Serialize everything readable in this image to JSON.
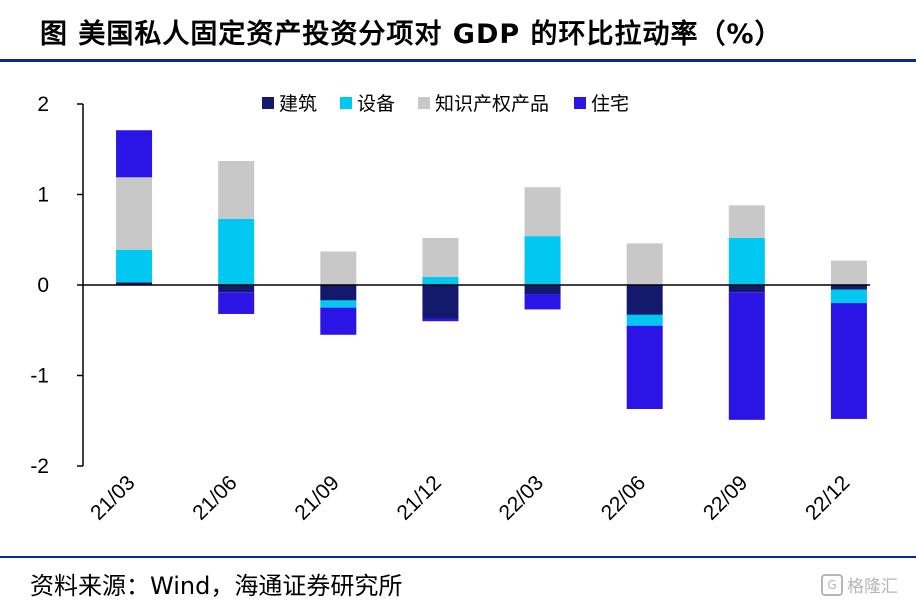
{
  "title": "图  美国私人固定资产投资分项对 GDP 的环比拉动率（%）",
  "source": "资料来源：Wind，海通证券研究所",
  "watermark": "格隆汇",
  "watermark_icon": "G",
  "colors": {
    "建筑": "#131a6e",
    "设备": "#00c8f0",
    "知识产权产品": "#c8c8c8",
    "住宅": "#2a14e6",
    "title_rule": "#0b2a8a"
  },
  "chart_data": {
    "type": "bar",
    "stacked": true,
    "title": "",
    "xlabel": "",
    "ylabel": "",
    "ylim": [
      -2,
      2
    ],
    "yticks": [
      2,
      1,
      0,
      -1,
      -2
    ],
    "legend_position": "top",
    "grid": false,
    "categories": [
      "21/03",
      "21/06",
      "21/09",
      "21/12",
      "22/03",
      "22/06",
      "22/09",
      "22/12"
    ],
    "series": [
      {
        "name": "建筑",
        "values": [
          0.03,
          -0.08,
          -0.17,
          -0.37,
          -0.1,
          -0.33,
          -0.08,
          -0.05
        ]
      },
      {
        "name": "设备",
        "values": [
          0.36,
          0.73,
          -0.08,
          0.09,
          0.54,
          -0.12,
          0.52,
          -0.15
        ]
      },
      {
        "name": "知识产权产品",
        "values": [
          0.8,
          0.64,
          0.37,
          0.43,
          0.54,
          0.46,
          0.36,
          0.27
        ]
      },
      {
        "name": "住宅",
        "values": [
          0.52,
          -0.24,
          -0.3,
          -0.03,
          -0.17,
          -0.92,
          -1.41,
          -1.28
        ]
      }
    ]
  }
}
